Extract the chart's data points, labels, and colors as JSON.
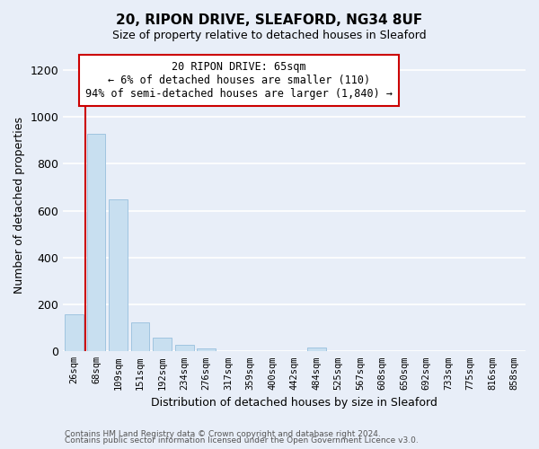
{
  "title": "20, RIPON DRIVE, SLEAFORD, NG34 8UF",
  "subtitle": "Size of property relative to detached houses in Sleaford",
  "xlabel": "Distribution of detached houses by size in Sleaford",
  "ylabel": "Number of detached properties",
  "bar_labels": [
    "26sqm",
    "68sqm",
    "109sqm",
    "151sqm",
    "192sqm",
    "234sqm",
    "276sqm",
    "317sqm",
    "359sqm",
    "400sqm",
    "442sqm",
    "484sqm",
    "525sqm",
    "567sqm",
    "608sqm",
    "650sqm",
    "692sqm",
    "733sqm",
    "775sqm",
    "816sqm",
    "858sqm"
  ],
  "bar_values": [
    160,
    930,
    650,
    125,
    60,
    28,
    12,
    0,
    0,
    0,
    0,
    15,
    0,
    0,
    0,
    0,
    0,
    0,
    0,
    0,
    0
  ],
  "bar_color": "#c8dff0",
  "bar_edge_color": "#a0c4e0",
  "vline_color": "#cc0000",
  "annotation_text": "20 RIPON DRIVE: 65sqm\n← 6% of detached houses are smaller (110)\n94% of semi-detached houses are larger (1,840) →",
  "annotation_box_color": "#ffffff",
  "annotation_box_edge": "#cc0000",
  "ylim": [
    0,
    1250
  ],
  "yticks": [
    0,
    200,
    400,
    600,
    800,
    1000,
    1200
  ],
  "footer_line1": "Contains HM Land Registry data © Crown copyright and database right 2024.",
  "footer_line2": "Contains public sector information licensed under the Open Government Licence v3.0.",
  "bg_color": "#e8eef8",
  "plot_bg_color": "#e8eef8",
  "grid_color": "#ffffff",
  "title_fontsize": 11,
  "subtitle_fontsize": 9
}
